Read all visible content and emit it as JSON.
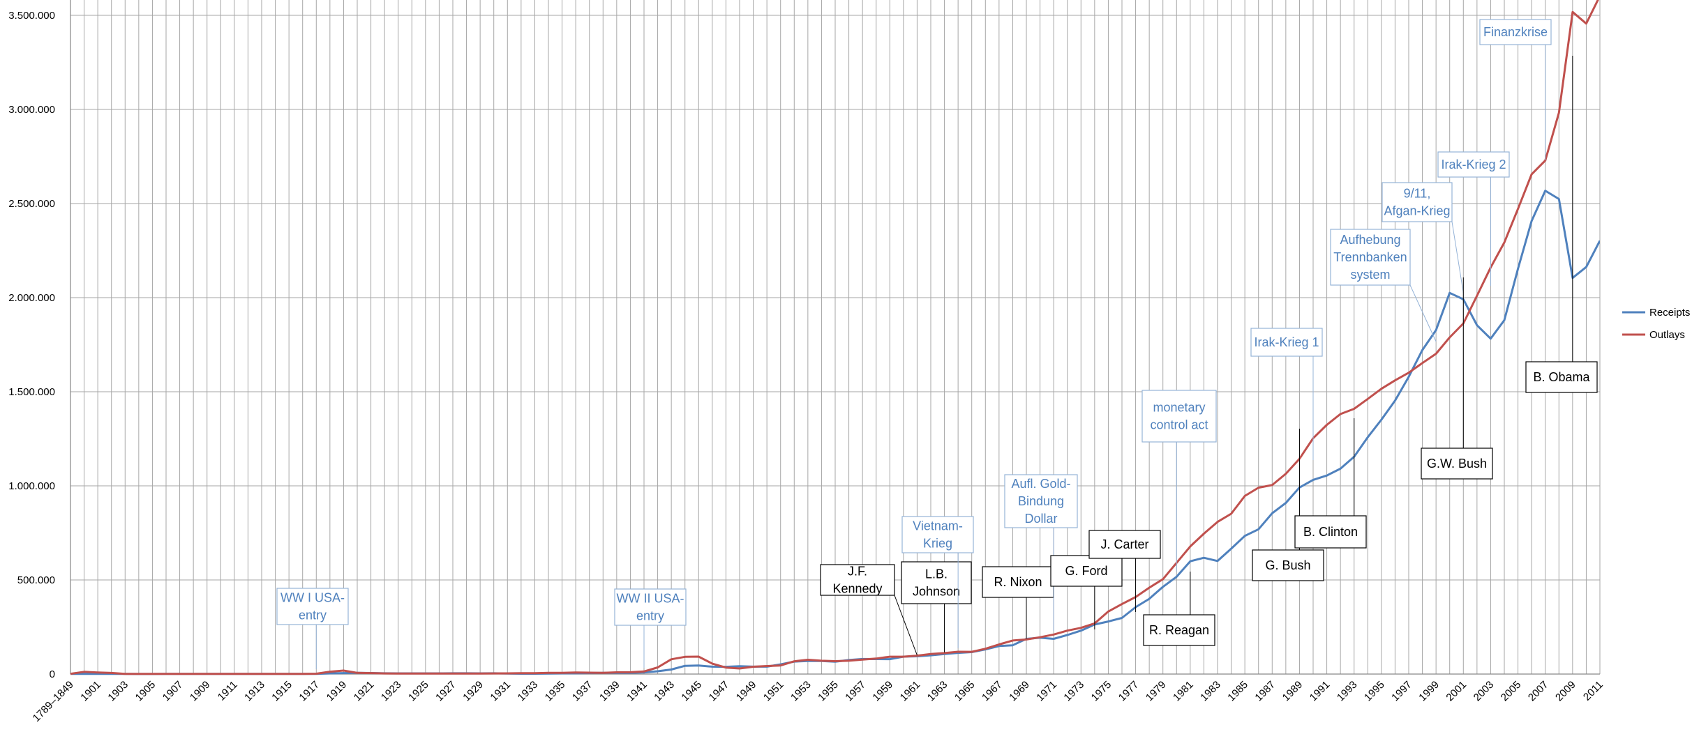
{
  "chart_data": {
    "type": "line",
    "title": "",
    "xlabel": "",
    "ylabel": "",
    "ylim": [
      0,
      3500000
    ],
    "y_ticks": [
      "0",
      "500.000",
      "1.000.000",
      "1.500.000",
      "2.000.000",
      "2.500.000",
      "3.000.000",
      "3.500.000"
    ],
    "grid": true,
    "legend_position": "right",
    "categories": [
      "1789–1849",
      "1900",
      "1901",
      "1902",
      "1903",
      "1904",
      "1905",
      "1906",
      "1907",
      "1908",
      "1909",
      "1910",
      "1911",
      "1912",
      "1913",
      "1914",
      "1915",
      "1916",
      "1917",
      "1918",
      "1919",
      "1920",
      "1921",
      "1922",
      "1923",
      "1924",
      "1925",
      "1926",
      "1927",
      "1928",
      "1929",
      "1930",
      "1931",
      "1932",
      "1933",
      "1934",
      "1935",
      "1936",
      "1937",
      "1938",
      "1939",
      "1940",
      "1941",
      "1942",
      "1943",
      "1944",
      "1945",
      "1946",
      "1947",
      "1948",
      "1949",
      "1950",
      "1951",
      "1952",
      "1953",
      "1954",
      "1955",
      "1956",
      "1957",
      "1958",
      "1959",
      "1960",
      "1961",
      "1962",
      "1963",
      "1964",
      "1965",
      "1966",
      "1967",
      "1968",
      "1969",
      "1970",
      "1971",
      "1972",
      "1973",
      "1974",
      "1975",
      "1976",
      "1977",
      "1978",
      "1979",
      "1980",
      "1981",
      "1982",
      "1983",
      "1984",
      "1985",
      "1986",
      "1987",
      "1988",
      "1989",
      "1990",
      "1991",
      "1992",
      "1993",
      "1994",
      "1995",
      "1996",
      "1997",
      "1998",
      "1999",
      "2000",
      "2001",
      "2002",
      "2003",
      "2004",
      "2005",
      "2006",
      "2007",
      "2008",
      "2009",
      "2010",
      "2011"
    ],
    "x_tick_labels": [
      "1789–1849",
      "1901",
      "1903",
      "1905",
      "1907",
      "1909",
      "1911",
      "1913",
      "1915",
      "1917",
      "1919",
      "1921",
      "1923",
      "1925",
      "1927",
      "1929",
      "1931",
      "1933",
      "1935",
      "1937",
      "1939",
      "1941",
      "1943",
      "1945",
      "1947",
      "1949",
      "1951",
      "1953",
      "1955",
      "1957",
      "1959",
      "1961",
      "1963",
      "1965",
      "1967",
      "1969",
      "1971",
      "1973",
      "1975",
      "1977",
      "1979",
      "1981",
      "1983",
      "1985",
      "1987",
      "1989",
      "1991",
      "1993",
      "1995",
      "1997",
      "1999",
      "2001",
      "2003",
      "2005",
      "2007",
      "2009",
      "2011"
    ],
    "series": [
      {
        "name": "Receipts",
        "color": "#4F81BD",
        "values": [
          1000,
          567,
          588,
          562,
          562,
          541,
          544,
          595,
          666,
          602,
          604,
          676,
          702,
          693,
          714,
          725,
          683,
          761,
          1101,
          3645,
          5130,
          6649,
          5571,
          4026,
          3853,
          3871,
          3641,
          3795,
          4013,
          3900,
          3862,
          4058,
          3116,
          1924,
          1997,
          2955,
          3609,
          3923,
          5387,
          6751,
          6295,
          6548,
          8712,
          14634,
          24001,
          43747,
          45159,
          39296,
          38514,
          41560,
          39415,
          39443,
          51616,
          66167,
          69608,
          69701,
          65451,
          74587,
          79990,
          79636,
          79249,
          92492,
          94388,
          99676,
          106560,
          112613,
          116817,
          130835,
          148822,
          152973,
          186882,
          192807,
          187139,
          207309,
          230799,
          263224,
          279090,
          298060,
          355559,
          399561,
          463302,
          517112,
          599272,
          617766,
          600562,
          666438,
          734037,
          769155,
          854287,
          909238,
          991105,
          1031958,
          1054988,
          1091208,
          1154335,
          1258566,
          1351790,
          1453053,
          1579232,
          1721728,
          1827452,
          2025191,
          1991082,
          1853136,
          1782314,
          1880114,
          2153611,
          2406869,
          2567985,
          2523991,
          2104989,
          2162724,
          2302500
        ]
      },
      {
        "name": "Outlays",
        "color": "#C0504D",
        "values": [
          1000,
          12000,
          8000,
          6000,
          1000,
          1000,
          1000,
          1000,
          1000,
          1000,
          1000,
          1000,
          1000,
          1000,
          1000,
          1000,
          1000,
          1000,
          1954,
          12677,
          18493,
          6358,
          5062,
          3289,
          3140,
          2908,
          2924,
          2930,
          2857,
          2961,
          3127,
          3320,
          3577,
          4659,
          4598,
          6541,
          6412,
          8228,
          7580,
          6840,
          9141,
          9468,
          13653,
          35137,
          78555,
          91304,
          92712,
          55232,
          34496,
          29764,
          38835,
          42562,
          45514,
          67686,
          76101,
          70855,
          68444,
          70640,
          76578,
          82405,
          92098,
          92191,
          97723,
          106821,
          111316,
          118528,
          118228,
          134532,
          157464,
          178134,
          183640,
          195649,
          210172,
          230681,
          245707,
          269359,
          332332,
          371792,
          409218,
          458746,
          504028,
          590941,
          678241,
          745743,
          808364,
          851805,
          946344,
          990382,
          1004017,
          1064416,
          1143744,
          1252993,
          1324226,
          1381529,
          1409386,
          1461753,
          1515742,
          1560484,
          1601116,
          1652458,
          1701842,
          1788950,
          1862846,
          2010894,
          2159899,
          2292841,
          2471957,
          2655050,
          2728686,
          2982544,
          3517677,
          3456213,
          3603061
        ]
      }
    ],
    "annotations": [
      {
        "id": "ww1",
        "text": [
          "WW I USA-",
          "entry"
        ],
        "style": "event",
        "category": "1917"
      },
      {
        "id": "ww2",
        "text": [
          "WW II USA-",
          "entry"
        ],
        "style": "event",
        "category": "1941"
      },
      {
        "id": "jfk",
        "text": [
          "J.F.",
          "Kennedy"
        ],
        "style": "president",
        "category": "1961"
      },
      {
        "id": "lbj",
        "text": [
          "L.B.",
          "Johnson"
        ],
        "style": "president",
        "category": "1963"
      },
      {
        "id": "vietnam",
        "text": [
          "Vietnam-",
          "Krieg"
        ],
        "style": "event",
        "category": "1964"
      },
      {
        "id": "nixon",
        "text": [
          "R. Nixon"
        ],
        "style": "president",
        "category": "1969"
      },
      {
        "id": "gold",
        "text": [
          "Aufl. Gold-",
          "Bindung",
          "Dollar"
        ],
        "style": "event",
        "category": "1971"
      },
      {
        "id": "ford",
        "text": [
          "G. Ford"
        ],
        "style": "president",
        "category": "1974"
      },
      {
        "id": "carter",
        "text": [
          "J. Carter"
        ],
        "style": "president",
        "category": "1977"
      },
      {
        "id": "monetary",
        "text": [
          "monetary",
          "control act"
        ],
        "style": "event",
        "category": "1980"
      },
      {
        "id": "reagan",
        "text": [
          "R. Reagan"
        ],
        "style": "president",
        "category": "1981"
      },
      {
        "id": "irak1",
        "text": [
          "Irak-Krieg 1"
        ],
        "style": "event",
        "category": "1990"
      },
      {
        "id": "gbush",
        "text": [
          "G. Bush"
        ],
        "style": "president",
        "category": "1989"
      },
      {
        "id": "clinton",
        "text": [
          "B. Clinton"
        ],
        "style": "president",
        "category": "1993"
      },
      {
        "id": "aufhebung",
        "text": [
          "Aufhebung",
          "Trennbanken",
          "system"
        ],
        "style": "event",
        "category": "1999"
      },
      {
        "id": "nine11",
        "text": [
          "9/11,",
          "Afgan-Krieg"
        ],
        "style": "event",
        "category": "2001"
      },
      {
        "id": "gwbush",
        "text": [
          "G.W. Bush"
        ],
        "style": "president",
        "category": "2001"
      },
      {
        "id": "irak2",
        "text": [
          "Irak-Krieg 2"
        ],
        "style": "event",
        "category": "2003"
      },
      {
        "id": "finanzkrise",
        "text": [
          "Finanzkrise"
        ],
        "style": "event",
        "category": "2007"
      },
      {
        "id": "obama",
        "text": [
          "B. Obama"
        ],
        "style": "president",
        "category": "2009"
      }
    ]
  }
}
